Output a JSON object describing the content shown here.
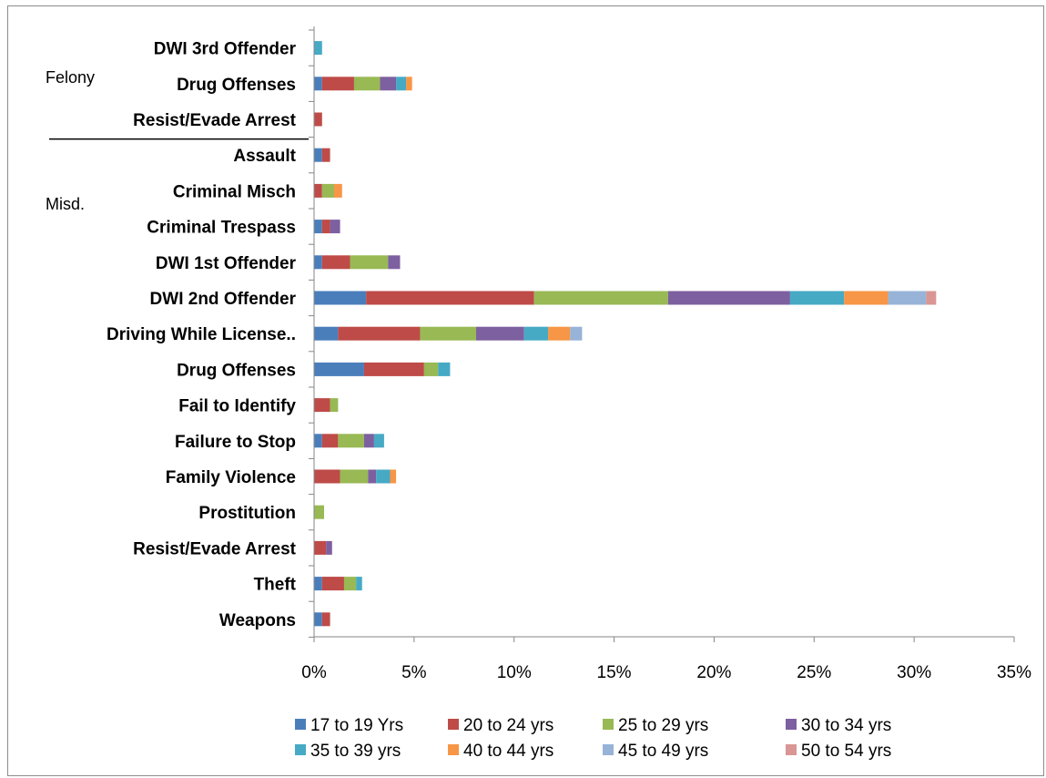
{
  "chart_data": {
    "type": "bar",
    "orientation": "horizontal",
    "stacked": true,
    "categories": [
      "DWI 3rd Offender",
      "Drug Offenses",
      "Resist/Evade Arrest",
      "Assault",
      "Criminal Misch",
      "Criminal Trespass",
      "DWI 1st Offender",
      "DWI 2nd Offender",
      "Driving While License..",
      "Drug Offenses",
      "Fail to Identify",
      "Failure to Stop",
      "Family Violence",
      "Prostitution",
      "Resist/Evade Arrest",
      "Theft",
      "Weapons"
    ],
    "groups": [
      {
        "label": "Felony",
        "categories": [
          0,
          1,
          2
        ]
      },
      {
        "label": "Misd.",
        "categories": [
          3,
          4,
          5,
          6,
          7,
          8,
          9,
          10,
          11,
          12,
          13,
          14,
          15,
          16
        ]
      }
    ],
    "series": [
      {
        "name": "17 to 19 Yrs",
        "color": "#4a7ebb",
        "values": [
          0,
          0.4,
          0,
          0.4,
          0,
          0.4,
          0.4,
          2.6,
          1.2,
          2.5,
          0,
          0.4,
          0,
          0,
          0,
          0.4,
          0.4
        ]
      },
      {
        "name": "20 to 24 yrs",
        "color": "#be4b48",
        "values": [
          0,
          1.6,
          0.4,
          0.4,
          0.4,
          0.4,
          1.4,
          8.4,
          4.1,
          3.0,
          0.8,
          0.8,
          1.3,
          0,
          0.6,
          1.1,
          0.4
        ]
      },
      {
        "name": "25 to 29 yrs",
        "color": "#98b954",
        "values": [
          0,
          1.3,
          0,
          0,
          0.6,
          0,
          1.9,
          6.7,
          2.8,
          0.7,
          0.4,
          1.3,
          1.4,
          0.5,
          0,
          0.6,
          0
        ]
      },
      {
        "name": "30 to 34 yrs",
        "color": "#7d60a0",
        "values": [
          0,
          0.8,
          0,
          0,
          0,
          0.5,
          0.6,
          6.1,
          2.4,
          0,
          0,
          0.5,
          0.4,
          0,
          0.3,
          0,
          0
        ]
      },
      {
        "name": "35 to 39 yrs",
        "color": "#46aac5",
        "values": [
          0.4,
          0.5,
          0,
          0,
          0,
          0,
          0,
          2.7,
          1.2,
          0.6,
          0,
          0.5,
          0.7,
          0,
          0,
          0.3,
          0
        ]
      },
      {
        "name": "40 to 44 yrs",
        "color": "#f79646",
        "values": [
          0,
          0.3,
          0,
          0,
          0.4,
          0,
          0,
          2.2,
          1.1,
          0,
          0,
          0,
          0.3,
          0,
          0,
          0,
          0
        ]
      },
      {
        "name": "45 to 49 yrs",
        "color": "#97b3d7",
        "values": [
          0,
          0,
          0,
          0,
          0,
          0,
          0,
          1.9,
          0.6,
          0,
          0,
          0,
          0,
          0,
          0,
          0,
          0
        ]
      },
      {
        "name": "50 to 54 yrs",
        "color": "#d99694",
        "values": [
          0,
          0,
          0,
          0,
          0,
          0,
          0,
          0.5,
          0,
          0,
          0,
          0,
          0,
          0,
          0,
          0,
          0
        ]
      }
    ],
    "xlim": [
      0,
      35
    ],
    "xticks": [
      0,
      5,
      10,
      15,
      20,
      25,
      30,
      35
    ],
    "xtick_labels": [
      "0%",
      "5%",
      "10%",
      "15%",
      "20%",
      "25%",
      "30%",
      "35%"
    ],
    "grid": false,
    "legend_position": "bottom",
    "title": "",
    "xlabel": "",
    "ylabel": ""
  }
}
